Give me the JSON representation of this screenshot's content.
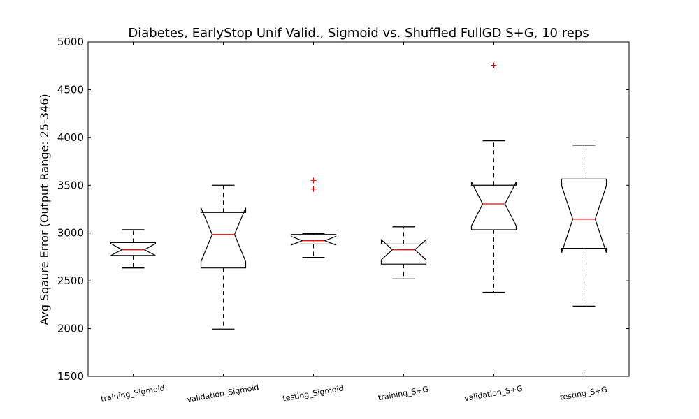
{
  "chart_data": {
    "type": "boxplot",
    "title": "Diabetes, EarlyStop Unif Valid., Sigmoid vs. Shuffled FullGD S+G, 10 reps",
    "xlabel": "",
    "ylabel": "Avg Sqaure Error (Output Range: 25-346)",
    "ylim": [
      1500,
      5000
    ],
    "yticks": [
      "1500",
      "2000",
      "2500",
      "3000",
      "3500",
      "4000",
      "4500",
      "5000"
    ],
    "notched": true,
    "grid": false,
    "colors": {
      "box": "#000000",
      "median": "#ff0000",
      "outlier": "#ff0000",
      "whisker": "#000000"
    },
    "categories": [
      "training_Sigmoid",
      "validation_Sigmoid",
      "testing_Sigmoid",
      "training_S+G",
      "validation_S+G",
      "testing_S+G"
    ],
    "boxes": [
      {
        "label": "training_Sigmoid",
        "whislo": 2635,
        "q1": 2765,
        "med": 2825,
        "q3": 2900,
        "whishi": 3035,
        "notch_lo": 2765,
        "notch_hi": 2890,
        "outliers": []
      },
      {
        "label": "validation_Sigmoid",
        "whislo": 1995,
        "q1": 2635,
        "med": 2985,
        "q3": 3215,
        "whishi": 3500,
        "notch_lo": 2700,
        "notch_hi": 3265,
        "outliers": []
      },
      {
        "label": "testing_Sigmoid",
        "whislo": 2745,
        "q1": 2885,
        "med": 2920,
        "q3": 2985,
        "whishi": 2995,
        "notch_lo": 2875,
        "notch_hi": 2965,
        "outliers": [
          3460,
          3550
        ]
      },
      {
        "label": "training_S+G",
        "whislo": 2520,
        "q1": 2675,
        "med": 2825,
        "q3": 2885,
        "whishi": 3065,
        "notch_lo": 2720,
        "notch_hi": 2930,
        "outliers": []
      },
      {
        "label": "validation_S+G",
        "whislo": 2380,
        "q1": 3035,
        "med": 3305,
        "q3": 3500,
        "whishi": 3965,
        "notch_lo": 3075,
        "notch_hi": 3535,
        "outliers": [
          4755
        ]
      },
      {
        "label": "testing_S+G",
        "whislo": 2235,
        "q1": 2840,
        "med": 3145,
        "q3": 3565,
        "whishi": 3920,
        "notch_lo": 2795,
        "notch_hi": 3495,
        "outliers": []
      }
    ]
  }
}
